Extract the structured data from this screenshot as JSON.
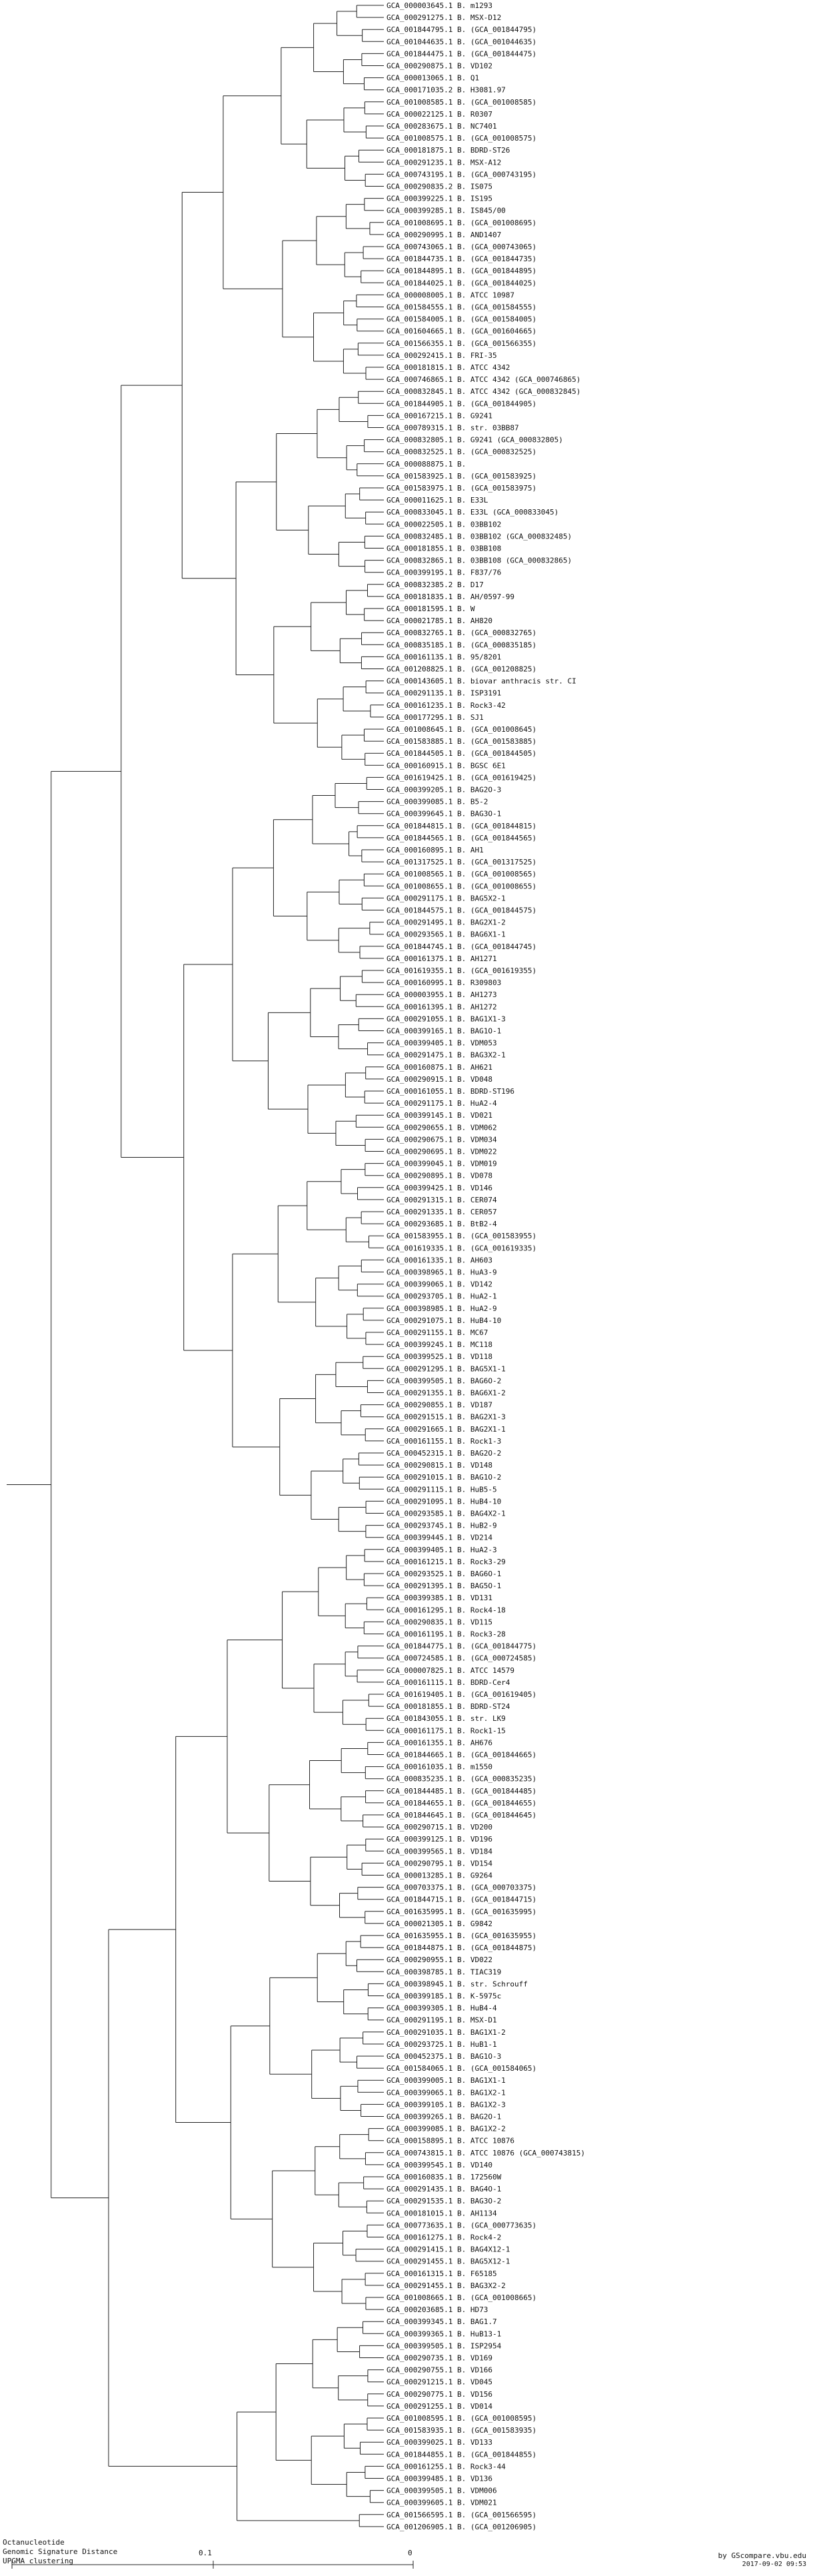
{
  "labels": [
    "GCA_000003645.1 B. m1293",
    "GCA_000291275.1 B. MSX-D12",
    "GCA_001844795.1 B. (GCA_001844795)",
    "GCA_001044635.1 B. (GCA_001044635)",
    "GCA_001844475.1 B. (GCA_001844475)",
    "GCA_000290875.1 B. VD102",
    "GCA_000013065.1 B. Q1",
    "GCA_000171035.2 B. H3081.97",
    "GCA_001008585.1 B. (GCA_001008585)",
    "GCA_000022125.1 B. R0307",
    "GCA_000283675.1 B. NC7401",
    "GCA_001008575.1 B. (GCA_001008575)",
    "GCA_000181875.1 B. BDRD-ST26",
    "GCA_000291235.1 B. MSX-A12",
    "GCA_000743195.1 B. (GCA_000743195)",
    "GCA_000290835.2 B. IS075",
    "GCA_000399225.1 B. IS195",
    "GCA_000399285.1 B. IS845/00",
    "GCA_001008695.1 B. (GCA_001008695)",
    "GCA_000290995.1 B. AND1407",
    "GCA_000743065.1 B. (GCA_000743065)",
    "GCA_001844735.1 B. (GCA_001844735)",
    "GCA_001844895.1 B. (GCA_001844895)",
    "GCA_001844025.1 B. (GCA_001844025)",
    "GCA_000008005.1 B. ATCC 10987",
    "GCA_001584555.1 B. (GCA_001584555)",
    "GCA_001584005.1 B. (GCA_001584005)",
    "GCA_001604665.1 B. (GCA_001604665)",
    "GCA_001566355.1 B. (GCA_001566355)",
    "GCA_000292415.1 B. FRI-35",
    "GCA_000181815.1 B. ATCC 4342",
    "GCA_000746865.1 B. ATCC 4342 (GCA_000746865)",
    "GCA_000832845.1 B. ATCC 4342 (GCA_000832845)",
    "GCA_001844905.1 B. (GCA_001844905)",
    "GCA_000167215.1 B. G9241",
    "GCA_000789315.1 B. str. 03BB87",
    "GCA_000832805.1 B. G9241 (GCA_000832805)",
    "GCA_000832525.1 B. (GCA_000832525)",
    "GCA_000088875.1 B.",
    "GCA_001583925.1 B. (GCA_001583925)",
    "GCA_001583975.1 B. (GCA_001583975)",
    "GCA_000011625.1 B. E33L",
    "GCA_000833045.1 B. E33L (GCA_000833045)",
    "GCA_000022505.1 B. 03BB102",
    "GCA_000832485.1 B. 03BB102 (GCA_000832485)",
    "GCA_000181855.1 B. 03BB108",
    "GCA_000832865.1 B. 03BB108 (GCA_000832865)",
    "GCA_000399195.1 B. F837/76",
    "GCA_000832385.2 B. D17",
    "GCA_000181835.1 B. AH/0597-99",
    "GCA_000181595.1 B. W",
    "GCA_000021785.1 B. AH820",
    "GCA_000832765.1 B. (GCA_000832765)",
    "GCA_000835185.1 B. (GCA_000835185)",
    "GCA_000161135.1 B. 95/8201",
    "GCA_001208825.1 B. (GCA_001208825)",
    "GCA_000143605.1 B. biovar anthracis str. CI",
    "GCA_000291135.1 B. ISP3191",
    "GCA_000161235.1 B. Rock3-42",
    "GCA_000177295.1 B. SJ1",
    "GCA_001008645.1 B. (GCA_001008645)",
    "GCA_001583885.1 B. (GCA_001583885)",
    "GCA_001844505.1 B. (GCA_001844505)",
    "GCA_000160915.1 B. BGSC 6E1",
    "GCA_001619425.1 B. (GCA_001619425)",
    "GCA_000399205.1 B. BAG2O-3",
    "GCA_000399085.1 B. B5-2",
    "GCA_000399645.1 B. BAG3O-1",
    "GCA_001844815.1 B. (GCA_001844815)",
    "GCA_001844565.1 B. (GCA_001844565)",
    "GCA_000160895.1 B. AH1",
    "GCA_001317525.1 B. (GCA_001317525)",
    "GCA_001008565.1 B. (GCA_001008565)",
    "GCA_001008655.1 B. (GCA_001008655)",
    "GCA_000291175.1 B. BAG5X2-1",
    "GCA_001844575.1 B. (GCA_001844575)",
    "GCA_000291495.1 B. BAG2X1-2",
    "GCA_000293565.1 B. BAG6X1-1",
    "GCA_001844745.1 B. (GCA_001844745)",
    "GCA_000161375.1 B. AH1271",
    "GCA_001619355.1 B. (GCA_001619355)",
    "GCA_000160995.1 B. R309803",
    "GCA_000003955.1 B. AH1273",
    "GCA_000161395.1 B. AH1272",
    "GCA_000291055.1 B. BAG1X1-3",
    "GCA_000399165.1 B. BAG1O-1",
    "GCA_000399405.1 B. VDM053",
    "GCA_000291475.1 B. BAG3X2-1",
    "GCA_000160875.1 B. AH621",
    "GCA_000290915.1 B. VD048",
    "GCA_000161055.1 B. BDRD-ST196",
    "GCA_000291175.1 B. HuA2-4",
    "GCA_000399145.1 B. VD021",
    "GCA_000290655.1 B. VDM062",
    "GCA_000290675.1 B. VDM034",
    "GCA_000290695.1 B. VDM022",
    "GCA_000399045.1 B. VDM019",
    "GCA_000290895.1 B. VD078",
    "GCA_000399425.1 B. VD146",
    "GCA_000291315.1 B. CER074",
    "GCA_000291335.1 B. CER057",
    "GCA_000293685.1 B. BtB2-4",
    "GCA_001583955.1 B. (GCA_001583955)",
    "GCA_001619335.1 B. (GCA_001619335)",
    "GCA_000161335.1 B. AH603",
    "GCA_000398965.1 B. HuA3-9",
    "GCA_000399065.1 B. VD142",
    "GCA_000293705.1 B. HuA2-1",
    "GCA_000398985.1 B. HuA2-9",
    "GCA_000291075.1 B. HuB4-10",
    "GCA_000291155.1 B. MC67",
    "GCA_000399245.1 B. MC118",
    "GCA_000399525.1 B. VD118",
    "GCA_000291295.1 B. BAG5X1-1",
    "GCA_000399505.1 B. BAG6O-2",
    "GCA_000291355.1 B. BAG6X1-2",
    "GCA_000290855.1 B. VD187",
    "GCA_000291515.1 B. BAG2X1-3",
    "GCA_000291665.1 B. BAG2X1-1",
    "GCA_000161155.1 B. Rock1-3",
    "GCA_000452315.1 B. BAG2O-2",
    "GCA_000290815.1 B. VD148",
    "GCA_000291015.1 B. BAG1O-2",
    "GCA_000291115.1 B. HuB5-5",
    "GCA_000291095.1 B. HuB4-10",
    "GCA_000293585.1 B. BAG4X2-1",
    "GCA_000293745.1 B. HuB2-9",
    "GCA_000399445.1 B. VD214",
    "GCA_000399405.1 B. HuA2-3",
    "GCA_000161215.1 B. Rock3-29",
    "GCA_000293525.1 B. BAG6O-1",
    "GCA_000291395.1 B. BAG5O-1",
    "GCA_000399385.1 B. VD131",
    "GCA_000161295.1 B. Rock4-18",
    "GCA_000290835.1 B. VD115",
    "GCA_000161195.1 B. Rock3-28",
    "GCA_001844775.1 B. (GCA_001844775)",
    "GCA_000724585.1 B. (GCA_000724585)",
    "GCA_000007825.1 B. ATCC 14579",
    "GCA_000161115.1 B. BDRD-Cer4",
    "GCA_001619405.1 B. (GCA_001619405)",
    "GCA_000181855.1 B. BDRD-ST24",
    "GCA_001843055.1 B. str. LK9",
    "GCA_000161175.1 B. Rock1-15",
    "GCA_000161355.1 B. AH676",
    "GCA_001844665.1 B. (GCA_001844665)",
    "GCA_000161035.1 B. m1550",
    "GCA_000835235.1 B. (GCA_000835235)",
    "GCA_001844485.1 B. (GCA_001844485)",
    "GCA_001844655.1 B. (GCA_001844655)",
    "GCA_001844645.1 B. (GCA_001844645)",
    "GCA_000290715.1 B. VD200",
    "GCA_000399125.1 B. VD196",
    "GCA_000399565.1 B. VD184",
    "GCA_000290795.1 B. VD154",
    "GCA_000013285.1 B. G9264",
    "GCA_000703375.1 B. (GCA_000703375)",
    "GCA_001844715.1 B. (GCA_001844715)",
    "GCA_001635995.1 B. (GCA_001635995)",
    "GCA_000021305.1 B. G9842",
    "GCA_001635955.1 B. (GCA_001635955)",
    "GCA_001844875.1 B. (GCA_001844875)",
    "GCA_000290955.1 B. VD022",
    "GCA_000398785.1 B. TIAC319",
    "GCA_000398945.1 B. str. Schrouff",
    "GCA_000399185.1 B. K-5975c",
    "GCA_000399305.1 B. HuB4-4",
    "GCA_000291195.1 B. MSX-D1",
    "GCA_000291035.1 B. BAG1X1-2",
    "GCA_000293725.1 B. HuB1-1",
    "GCA_000452375.1 B. BAG1O-3",
    "GCA_001584065.1 B. (GCA_001584065)",
    "GCA_000399005.1 B. BAG1X1-1",
    "GCA_000399065.1 B. BAG1X2-1",
    "GCA_000399105.1 B. BAG1X2-3",
    "GCA_000399265.1 B. BAG2O-1",
    "GCA_000399085.1 B. BAG1X2-2",
    "GCA_000158895.1 B. ATCC 10876",
    "GCA_000743815.1 B. ATCC 10876 (GCA_000743815)",
    "GCA_000399545.1 B. VD140",
    "GCA_000160835.1 B. 172560W",
    "GCA_000291435.1 B. BAG4O-1",
    "GCA_000291535.1 B. BAG3O-2",
    "GCA_000181015.1 B. AH1134",
    "GCA_000773635.1 B. (GCA_000773635)",
    "GCA_000161275.1 B. Rock4-2",
    "GCA_000291415.1 B. BAG4X12-1",
    "GCA_000291455.1 B. BAG5X12-1",
    "GCA_000161315.1 B. F65185",
    "GCA_000291455.1 B. BAG3X2-2",
    "GCA_001008665.1 B. (GCA_001008665)",
    "GCA_000203685.1 B. HD73",
    "GCA_000399345.1 B. BAG1.7",
    "GCA_000399365.1 B. HuB13-1",
    "GCA_000399505.1 B. ISP2954",
    "GCA_000290735.1 B. VD169",
    "GCA_000290755.1 B. VD166",
    "GCA_000291215.1 B. VD045",
    "GCA_000290775.1 B. VD156",
    "GCA_000291255.1 B. VD014",
    "GCA_001008595.1 B. (GCA_001008595)",
    "GCA_001583935.1 B. (GCA_001583935)",
    "GCA_000399025.1 B. VD133",
    "GCA_001844855.1 B. (GCA_001844855)",
    "GCA_000161255.1 B. Rock3-44",
    "GCA_000399485.1 B. VD136",
    "GCA_000399505.1 B. VDM006",
    "GCA_000399605.1 B. VDM021",
    "GCA_001566595.1 B. (GCA_001566595)",
    "GCA_001206905.1 B. (GCA_001206905)"
  ],
  "axis": {
    "tick_left": "0.1",
    "tick_right": "0"
  },
  "footer": {
    "left_line1": "Octanucleotide",
    "left_line2": "Genomic Signature Distance",
    "left_line3": "UPGMA clustering",
    "right_line1": "by GScompare.vbu.edu",
    "right_line2": "2017-09-02 09:53"
  },
  "colors": {
    "line": "#222222",
    "background": "#ffffff"
  }
}
